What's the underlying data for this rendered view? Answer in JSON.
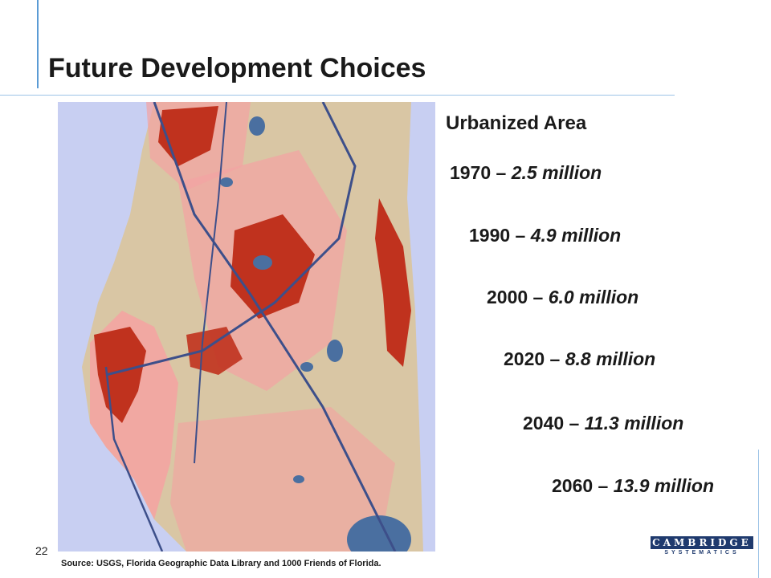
{
  "slide": {
    "title": "Future Development Choices",
    "page_number": "22",
    "source": "Source:  USGS, Florida Geographic Data Library and 1000 Friends of Florida."
  },
  "legend": {
    "heading": "Urbanized Area",
    "entries": [
      {
        "year": "1970",
        "sep": " – ",
        "value": "2.5 million"
      },
      {
        "year": "1990",
        "sep": " – ",
        "value": "4.9 million"
      },
      {
        "year": "2000",
        "sep": " – ",
        "value": "6.0 million"
      },
      {
        "year": "2020",
        "sep": " – ",
        "value": "8.8 million"
      },
      {
        "year": "2040",
        "sep": " – ",
        "value": "11.3 million"
      },
      {
        "year": "2060",
        "sep": " – ",
        "value": "13.9 million"
      }
    ]
  },
  "logo": {
    "name": "CAMBRIDGE",
    "tagline": "SYSTEMATICS"
  },
  "colors": {
    "frame_line": "#5b9bd5",
    "water": "#c8cff2",
    "land": "#d9c6a4",
    "urban_future": "#f4a2a2",
    "urban_existing": "#c0321e",
    "lakes": "#4a6fa0",
    "highways": "#3d4f8a"
  }
}
